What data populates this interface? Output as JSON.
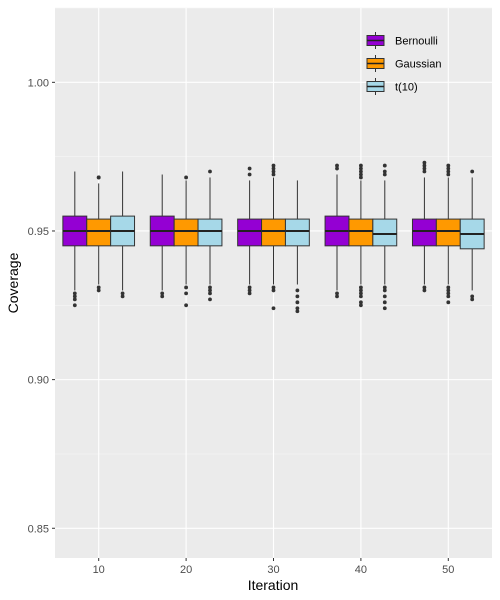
{
  "chart_data": {
    "type": "boxplot",
    "xlabel": "Iteration",
    "ylabel": "Coverage",
    "categories": [
      "10",
      "20",
      "30",
      "40",
      "50"
    ],
    "ylim": [
      0.84,
      1.025
    ],
    "yticks": [
      0.85,
      0.9,
      0.95,
      1.0
    ],
    "ytick_labels": [
      "0.85",
      "0.90",
      "0.95",
      "1.00"
    ],
    "grid": true,
    "legend_position": "top-right inside",
    "series": [
      {
        "name": "Bernoulli",
        "color": "#9400D3",
        "boxes": [
          {
            "q1": 0.945,
            "median": 0.95,
            "q3": 0.955,
            "lower_whisker": 0.93,
            "upper_whisker": 0.97,
            "outliers": [
              0.929,
              0.928,
              0.927,
              0.925
            ]
          },
          {
            "q1": 0.945,
            "median": 0.95,
            "q3": 0.955,
            "lower_whisker": 0.93,
            "upper_whisker": 0.969,
            "outliers": [
              0.929,
              0.928
            ]
          },
          {
            "q1": 0.945,
            "median": 0.95,
            "q3": 0.954,
            "lower_whisker": 0.932,
            "upper_whisker": 0.967,
            "outliers": [
              0.971,
              0.969,
              0.931,
              0.93,
              0.929
            ]
          },
          {
            "q1": 0.945,
            "median": 0.95,
            "q3": 0.955,
            "lower_whisker": 0.93,
            "upper_whisker": 0.969,
            "outliers": [
              0.972,
              0.971,
              0.929,
              0.928
            ]
          },
          {
            "q1": 0.945,
            "median": 0.95,
            "q3": 0.954,
            "lower_whisker": 0.932,
            "upper_whisker": 0.968,
            "outliers": [
              0.973,
              0.972,
              0.971,
              0.97,
              0.931,
              0.93
            ]
          }
        ]
      },
      {
        "name": "Gaussian",
        "color": "#FF9900",
        "boxes": [
          {
            "q1": 0.945,
            "median": 0.95,
            "q3": 0.954,
            "lower_whisker": 0.932,
            "upper_whisker": 0.966,
            "outliers": [
              0.968,
              0.968,
              0.931,
              0.93
            ]
          },
          {
            "q1": 0.945,
            "median": 0.95,
            "q3": 0.954,
            "lower_whisker": 0.932,
            "upper_whisker": 0.967,
            "outliers": [
              0.968,
              0.931,
              0.929,
              0.925
            ]
          },
          {
            "q1": 0.945,
            "median": 0.95,
            "q3": 0.954,
            "lower_whisker": 0.932,
            "upper_whisker": 0.968,
            "outliers": [
              0.972,
              0.971,
              0.97,
              0.969,
              0.931,
              0.93,
              0.924
            ]
          },
          {
            "q1": 0.945,
            "median": 0.95,
            "q3": 0.954,
            "lower_whisker": 0.932,
            "upper_whisker": 0.967,
            "outliers": [
              0.972,
              0.971,
              0.97,
              0.969,
              0.968,
              0.931,
              0.93,
              0.929,
              0.928,
              0.926,
              0.925
            ]
          },
          {
            "q1": 0.945,
            "median": 0.95,
            "q3": 0.954,
            "lower_whisker": 0.932,
            "upper_whisker": 0.968,
            "outliers": [
              0.972,
              0.971,
              0.97,
              0.969,
              0.931,
              0.93,
              0.929,
              0.928,
              0.926
            ]
          }
        ]
      },
      {
        "name": "t(10)",
        "color": "#A6D8E8",
        "boxes": [
          {
            "q1": 0.945,
            "median": 0.95,
            "q3": 0.955,
            "lower_whisker": 0.93,
            "upper_whisker": 0.97,
            "outliers": [
              0.929,
              0.928
            ]
          },
          {
            "q1": 0.945,
            "median": 0.95,
            "q3": 0.954,
            "lower_whisker": 0.932,
            "upper_whisker": 0.968,
            "outliers": [
              0.97,
              0.931,
              0.93,
              0.929,
              0.927
            ]
          },
          {
            "q1": 0.945,
            "median": 0.95,
            "q3": 0.954,
            "lower_whisker": 0.932,
            "upper_whisker": 0.967,
            "outliers": [
              0.93,
              0.928,
              0.926,
              0.924,
              0.923
            ]
          },
          {
            "q1": 0.945,
            "median": 0.949,
            "q3": 0.954,
            "lower_whisker": 0.932,
            "upper_whisker": 0.967,
            "outliers": [
              0.972,
              0.97,
              0.969,
              0.931,
              0.93,
              0.928,
              0.926,
              0.924
            ]
          },
          {
            "q1": 0.944,
            "median": 0.949,
            "q3": 0.954,
            "lower_whisker": 0.93,
            "upper_whisker": 0.968,
            "outliers": [
              0.97,
              0.928,
              0.927
            ]
          }
        ]
      }
    ]
  }
}
